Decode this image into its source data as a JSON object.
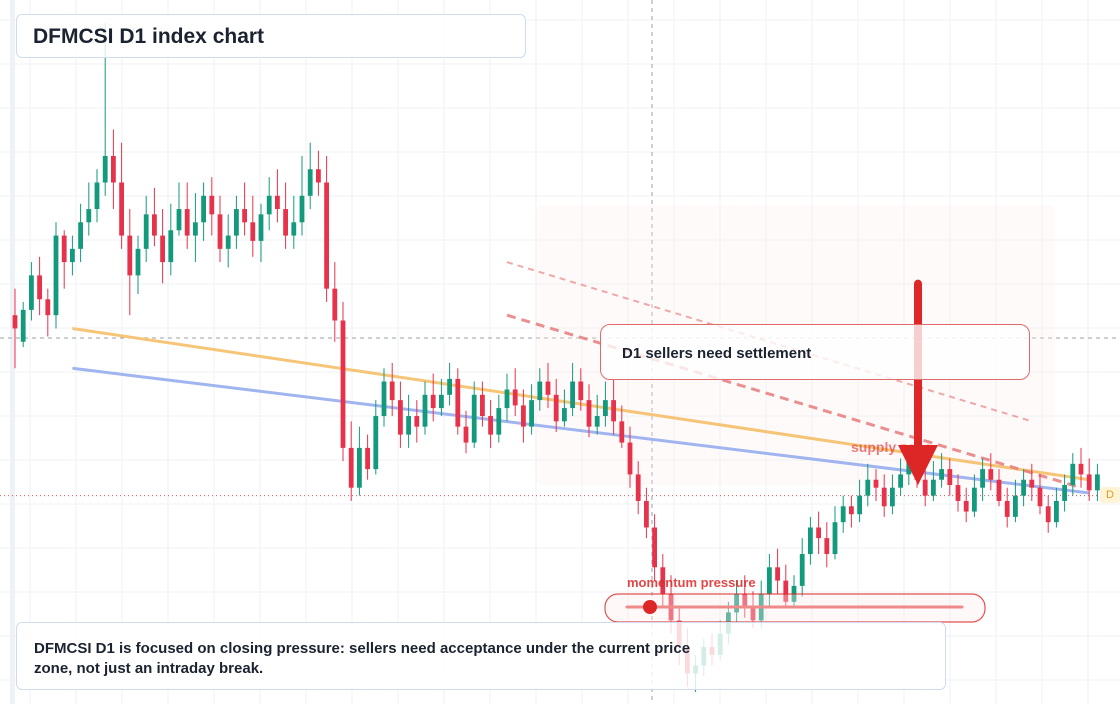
{
  "header": {
    "title": "DFMCSI D1 index chart"
  },
  "callout": {
    "text": "D1 sellers need settlement"
  },
  "description": {
    "text": "DFMCSI D1 is focused on closing pressure: sellers need acceptance under the current price zone, not just an intraday break."
  },
  "annotations": {
    "supply_label": "supply zone",
    "momentum_label": "momentum pressure",
    "price_tag": "D"
  },
  "colors": {
    "bull": "#139a7c",
    "bear": "#e6334b",
    "orange_line": "#f6c270",
    "blue_line": "#9bb1f0",
    "red": "#dd2727",
    "dashed": "#e77d7d"
  },
  "chart_data": {
    "type": "candlestick",
    "title": "DFMCSI D1 index chart",
    "xlabel": "",
    "ylabel": "",
    "axis_labels_visible": false,
    "grid": true,
    "candles": [
      [
        120,
        115,
        130,
        100
      ],
      [
        110,
        122,
        125,
        108
      ],
      [
        122,
        135,
        140,
        118
      ],
      [
        135,
        126,
        142,
        120
      ],
      [
        126,
        120,
        130,
        112
      ],
      [
        120,
        150,
        155,
        115
      ],
      [
        150,
        140,
        152,
        130
      ],
      [
        140,
        145,
        150,
        135
      ],
      [
        145,
        155,
        162,
        140
      ],
      [
        155,
        160,
        170,
        150
      ],
      [
        160,
        170,
        175,
        155
      ],
      [
        170,
        180,
        230,
        165
      ],
      [
        180,
        170,
        190,
        160
      ],
      [
        170,
        150,
        185,
        145
      ],
      [
        150,
        135,
        160,
        120
      ],
      [
        135,
        145,
        150,
        128
      ],
      [
        145,
        158,
        165,
        140
      ],
      [
        158,
        150,
        168,
        146
      ],
      [
        150,
        140,
        160,
        132
      ],
      [
        140,
        152,
        162,
        135
      ],
      [
        152,
        160,
        170,
        150
      ],
      [
        160,
        150,
        170,
        145
      ],
      [
        150,
        155,
        166,
        140
      ],
      [
        155,
        165,
        170,
        148
      ],
      [
        165,
        158,
        172,
        150
      ],
      [
        158,
        145,
        165,
        140
      ],
      [
        145,
        150,
        158,
        138
      ],
      [
        150,
        160,
        165,
        145
      ],
      [
        160,
        155,
        170,
        150
      ],
      [
        155,
        148,
        165,
        142
      ],
      [
        148,
        158,
        162,
        140
      ],
      [
        158,
        165,
        172,
        152
      ],
      [
        165,
        160,
        175,
        155
      ],
      [
        160,
        150,
        170,
        145
      ],
      [
        150,
        155,
        165,
        145
      ],
      [
        155,
        165,
        180,
        150
      ],
      [
        165,
        175,
        185,
        160
      ],
      [
        175,
        170,
        182,
        165
      ],
      [
        170,
        130,
        180,
        125
      ],
      [
        130,
        118,
        140,
        110
      ],
      [
        118,
        70,
        125,
        65
      ],
      [
        70,
        55,
        80,
        50
      ],
      [
        55,
        70,
        78,
        52
      ],
      [
        70,
        62,
        75,
        58
      ],
      [
        62,
        82,
        88,
        60
      ],
      [
        82,
        95,
        100,
        78
      ],
      [
        95,
        88,
        102,
        82
      ],
      [
        88,
        75,
        95,
        70
      ],
      [
        75,
        82,
        90,
        70
      ],
      [
        82,
        78,
        88,
        72
      ],
      [
        78,
        90,
        95,
        75
      ],
      [
        90,
        85,
        98,
        80
      ],
      [
        85,
        90,
        96,
        82
      ],
      [
        90,
        96,
        102,
        86
      ],
      [
        96,
        78,
        100,
        75
      ],
      [
        78,
        72,
        84,
        68
      ],
      [
        72,
        90,
        95,
        70
      ],
      [
        90,
        82,
        95,
        78
      ],
      [
        82,
        75,
        88,
        70
      ],
      [
        75,
        85,
        90,
        72
      ],
      [
        85,
        92,
        98,
        80
      ],
      [
        92,
        86,
        100,
        82
      ],
      [
        86,
        78,
        92,
        72
      ],
      [
        78,
        88,
        94,
        75
      ],
      [
        88,
        95,
        100,
        84
      ],
      [
        95,
        90,
        102,
        85
      ],
      [
        90,
        80,
        96,
        76
      ],
      [
        80,
        85,
        92,
        78
      ],
      [
        85,
        95,
        102,
        82
      ],
      [
        95,
        88,
        100,
        84
      ],
      [
        88,
        78,
        94,
        74
      ],
      [
        78,
        82,
        90,
        75
      ],
      [
        82,
        88,
        95,
        78
      ],
      [
        88,
        80,
        96,
        75
      ],
      [
        80,
        72,
        86,
        70
      ],
      [
        72,
        60,
        78,
        55
      ],
      [
        60,
        50,
        65,
        45
      ],
      [
        50,
        40,
        55,
        36
      ],
      [
        40,
        25,
        45,
        20
      ],
      [
        25,
        15,
        30,
        10
      ],
      [
        15,
        5,
        22,
        0
      ],
      [
        5,
        -5,
        10,
        -12
      ],
      [
        -5,
        -15,
        2,
        -20
      ],
      [
        -15,
        -12,
        -8,
        -22
      ],
      [
        -12,
        -5,
        -2,
        -16
      ],
      [
        -5,
        -8,
        0,
        -12
      ],
      [
        -8,
        0,
        5,
        -10
      ],
      [
        0,
        8,
        12,
        -4
      ],
      [
        8,
        15,
        20,
        4
      ],
      [
        15,
        10,
        22,
        6
      ],
      [
        10,
        5,
        16,
        2
      ],
      [
        5,
        15,
        20,
        2
      ],
      [
        15,
        25,
        30,
        10
      ],
      [
        25,
        20,
        32,
        15
      ],
      [
        20,
        12,
        26,
        10
      ],
      [
        12,
        18,
        22,
        10
      ],
      [
        18,
        30,
        36,
        14
      ],
      [
        30,
        40,
        44,
        26
      ],
      [
        40,
        36,
        46,
        30
      ],
      [
        36,
        30,
        42,
        25
      ],
      [
        30,
        42,
        48,
        28
      ],
      [
        42,
        48,
        52,
        38
      ],
      [
        48,
        45,
        52,
        40
      ],
      [
        45,
        52,
        58,
        42
      ],
      [
        52,
        58,
        64,
        48
      ],
      [
        58,
        55,
        62,
        50
      ],
      [
        55,
        48,
        60,
        44
      ],
      [
        48,
        55,
        60,
        45
      ],
      [
        55,
        60,
        66,
        52
      ],
      [
        60,
        65,
        70,
        56
      ],
      [
        65,
        58,
        70,
        55
      ],
      [
        58,
        52,
        62,
        48
      ],
      [
        52,
        58,
        65,
        50
      ],
      [
        58,
        62,
        68,
        55
      ],
      [
        62,
        56,
        66,
        52
      ],
      [
        56,
        50,
        60,
        46
      ],
      [
        50,
        46,
        55,
        42
      ],
      [
        46,
        55,
        60,
        44
      ],
      [
        55,
        62,
        66,
        50
      ],
      [
        62,
        58,
        68,
        54
      ],
      [
        58,
        50,
        62,
        48
      ],
      [
        50,
        44,
        55,
        40
      ],
      [
        44,
        52,
        58,
        42
      ],
      [
        52,
        58,
        62,
        48
      ],
      [
        58,
        55,
        64,
        50
      ],
      [
        55,
        48,
        60,
        45
      ],
      [
        48,
        42,
        52,
        38
      ],
      [
        42,
        50,
        55,
        40
      ],
      [
        50,
        56,
        60,
        46
      ],
      [
        56,
        64,
        68,
        52
      ],
      [
        64,
        60,
        70,
        55
      ],
      [
        60,
        54,
        66,
        50
      ],
      [
        54,
        60,
        64,
        50
      ]
    ],
    "ylim": [
      -25,
      235
    ],
    "overlays": {
      "orange_line": {
        "from": [
          7,
          115
        ],
        "to": [
          131,
          58
        ],
        "color": "#f6c270"
      },
      "blue_line": {
        "from": [
          7,
          100
        ],
        "to": [
          131,
          53
        ],
        "color": "#9bb1f0"
      },
      "dashed_upper": {
        "from": [
          60,
          140
        ],
        "to": [
          124,
          80
        ]
      },
      "dashed_lower": {
        "from": [
          60,
          120
        ],
        "to": [
          130,
          55
        ]
      },
      "arrow": {
        "x": 108,
        "from": 130,
        "to": 56
      },
      "support_price": 52
    }
  }
}
